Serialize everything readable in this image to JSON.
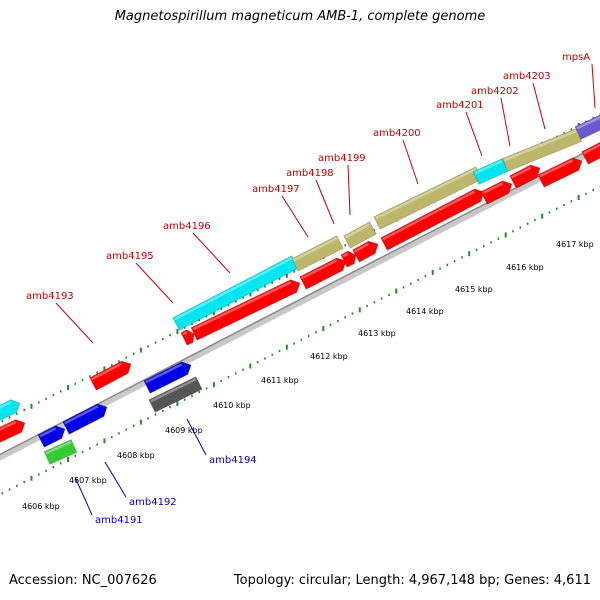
{
  "header": {
    "title": "Magnetospirillum magneticum AMB-1, complete genome"
  },
  "footer": {
    "accession": "Accession: NC_007626",
    "summary": "Topology: circular; Length: 4,967,148 bp; Genes: 4,611"
  },
  "colors": {
    "forward_label": "#cc0000",
    "reverse_label": "#0000cc",
    "red": "#ff0000",
    "blue": "#0000e6",
    "cyan": "#00e6f0",
    "olive": "#bdb76b",
    "green": "#33cc33",
    "grey": "#555555",
    "purple": "#6a5acd",
    "backbone": "#999999",
    "ticks": "#228b22"
  },
  "scale_labels": [
    "4606 kbp",
    "4607 kbp",
    "4608 kbp",
    "4609 kbp",
    "4610 kbp",
    "4611 kbp",
    "4612 kbp",
    "4613 kbp",
    "4614 kbp",
    "4615 kbp",
    "4616 kbp",
    "4617 kbp"
  ],
  "gene_labels": [
    {
      "text": "amb4193",
      "strand": "forward"
    },
    {
      "text": "amb4195",
      "strand": "forward"
    },
    {
      "text": "amb4196",
      "strand": "forward"
    },
    {
      "text": "amb4197",
      "strand": "forward"
    },
    {
      "text": "amb4198",
      "strand": "forward"
    },
    {
      "text": "amb4199",
      "strand": "forward"
    },
    {
      "text": "amb4200",
      "strand": "forward"
    },
    {
      "text": "amb4201",
      "strand": "forward"
    },
    {
      "text": "amb4202",
      "strand": "forward"
    },
    {
      "text": "amb4203",
      "strand": "forward"
    },
    {
      "text": "mpsA",
      "strand": "forward"
    },
    {
      "text": "amb4191",
      "strand": "reverse"
    },
    {
      "text": "amb4192",
      "strand": "reverse"
    },
    {
      "text": "amb4194",
      "strand": "reverse"
    }
  ]
}
